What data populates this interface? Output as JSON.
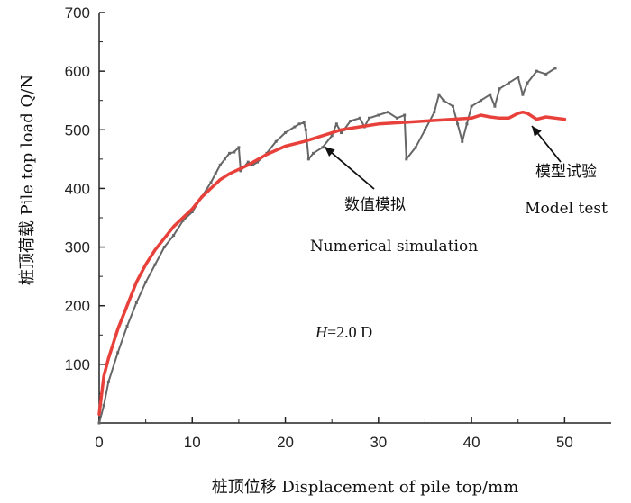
{
  "chart_data": {
    "type": "line",
    "xlabel": "桩顶位移 Displacement of pile top/mm",
    "ylabel": "桩顶荷载 Pile top load Q/N",
    "xlim": [
      0,
      55
    ],
    "ylim": [
      0,
      700
    ],
    "xticks": [
      0,
      10,
      20,
      30,
      40,
      50
    ],
    "yticks": [
      100,
      200,
      300,
      400,
      500,
      600,
      700
    ],
    "x_origin_label": "0",
    "grid": false,
    "colors": {
      "model_test": "#666666",
      "simulation": "#e8403a",
      "axis": "#222222"
    },
    "series": [
      {
        "name": "模型试验 Model test",
        "x": [
          0,
          0.5,
          1,
          2,
          3,
          4,
          5,
          6,
          7,
          8,
          9,
          10,
          11,
          12,
          12.5,
          13,
          13.5,
          14,
          14.5,
          15,
          15.2,
          16,
          16.5,
          17,
          18,
          19,
          20,
          21,
          21.5,
          22,
          22.2,
          22.5,
          23,
          24,
          25,
          25.5,
          26,
          26.3,
          27,
          28,
          28.5,
          29,
          30,
          31,
          32,
          32.8,
          33,
          34,
          35,
          36,
          36.5,
          37,
          38,
          38.5,
          39,
          39.5,
          40,
          41,
          42,
          42.5,
          43,
          44,
          45,
          45.5,
          46,
          47,
          48,
          49
        ],
        "y": [
          0,
          30,
          70,
          120,
          165,
          205,
          240,
          270,
          300,
          320,
          345,
          360,
          385,
          410,
          425,
          440,
          450,
          460,
          462,
          470,
          430,
          445,
          440,
          445,
          460,
          480,
          495,
          505,
          510,
          512,
          500,
          450,
          460,
          470,
          490,
          510,
          495,
          500,
          515,
          520,
          505,
          520,
          525,
          530,
          520,
          525,
          450,
          470,
          500,
          530,
          560,
          550,
          540,
          510,
          480,
          510,
          540,
          550,
          560,
          540,
          570,
          580,
          590,
          560,
          580,
          600,
          595,
          605
        ]
      },
      {
        "name": "数值模拟 Numerical simulation",
        "x": [
          0,
          0.5,
          1,
          2,
          3,
          4,
          5,
          6,
          7,
          8,
          9,
          10,
          11,
          12,
          13,
          14,
          16,
          18,
          20,
          22,
          24,
          26,
          28,
          30,
          32,
          34,
          36,
          38,
          40,
          41,
          42,
          43,
          44,
          45,
          45.5,
          46,
          47,
          48,
          49,
          50
        ],
        "y": [
          15,
          80,
          110,
          160,
          200,
          240,
          270,
          295,
          315,
          335,
          350,
          365,
          385,
          400,
          415,
          425,
          440,
          458,
          472,
          480,
          490,
          500,
          505,
          510,
          512,
          514,
          516,
          518,
          520,
          525,
          522,
          520,
          520,
          528,
          530,
          528,
          518,
          522,
          520,
          518
        ]
      }
    ],
    "annotations": {
      "sim_cn": "数值模拟",
      "sim_en": "Numerical simulation",
      "test_cn": "模型试验",
      "test_en": "Model test",
      "param_var": "H",
      "param_val": "=2.0 D"
    }
  }
}
